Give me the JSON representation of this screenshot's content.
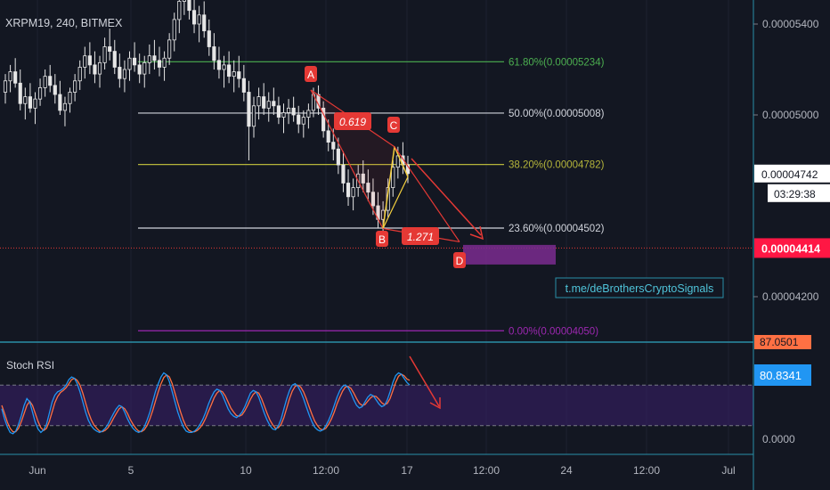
{
  "chart_data": {
    "type": "candlestick",
    "symbol_label": "XRPM19, 240, BITMEX",
    "watermark": "t.me/deBrothersCryptoSignals",
    "price_axis": {
      "ticks": [
        {
          "value": 5.4e-05,
          "label": "0.00005400"
        },
        {
          "value": 5e-05,
          "label": "0.00005000"
        },
        {
          "value": 4.2e-05,
          "label": "0.00004200"
        }
      ],
      "last_price": {
        "value": 4.742e-05,
        "label": "0.00004742",
        "countdown": "03:29:38"
      },
      "hline_price": {
        "value": 4.414e-05,
        "label": "0.00004414"
      },
      "ylim": [
        3.95e-05,
        5.55e-05
      ]
    },
    "time_axis": [
      "Jun",
      "5",
      "10",
      "12:00",
      "17",
      "12:00",
      "24",
      "12:00",
      "Jul"
    ],
    "fib_levels": [
      {
        "ratio": "61.80%",
        "value": 5.234e-05,
        "label": "61.80%(0.00005234)",
        "color": "#4caf50"
      },
      {
        "ratio": "50.00%",
        "value": 5.008e-05,
        "label": "50.00%(0.00005008)",
        "color": "#d1d4dc"
      },
      {
        "ratio": "38.20%",
        "value": 4.782e-05,
        "label": "38.20%(0.00004782)",
        "color": "#b5b53a"
      },
      {
        "ratio": "23.60%",
        "value": 4.502e-05,
        "label": "23.60%(0.00004502)",
        "color": "#d1d4dc"
      },
      {
        "ratio": "0.00%",
        "value": 4.05e-05,
        "label": "0.00%(0.00004050)",
        "color": "#9c27b0"
      }
    ],
    "pattern": {
      "points": [
        {
          "label": "A",
          "value": 5.11e-05
        },
        {
          "label": "B",
          "value": 4.5e-05
        },
        {
          "label": "C",
          "value": 4.86e-05
        },
        {
          "label": "D",
          "value": 4.41e-05
        }
      ],
      "ratios": [
        "0.619",
        "1.271"
      ]
    },
    "target_zone": {
      "from": 4.38e-05,
      "to": 4.42e-05
    },
    "stoch_rsi": {
      "title": "Stoch RSI",
      "ticks": [
        {
          "value": 0,
          "label": "0.0000"
        }
      ],
      "upper_band": 80,
      "lower_band": 20,
      "k_value_label": "80.8341",
      "d_value_label": "87.0501",
      "k": [
        45,
        30,
        18,
        10,
        8,
        12,
        22,
        35,
        50,
        60,
        55,
        40,
        25,
        15,
        10,
        14,
        22,
        38,
        55,
        65,
        70,
        72,
        75,
        80,
        88,
        92,
        90,
        82,
        70,
        55,
        40,
        28,
        20,
        15,
        12,
        10,
        12,
        16,
        22,
        30,
        38,
        45,
        50,
        48,
        40,
        30,
        22,
        16,
        12,
        10,
        12,
        18,
        28,
        40,
        55,
        70,
        82,
        92,
        98,
        95,
        85,
        70,
        55,
        40,
        28,
        18,
        12,
        10,
        10,
        12,
        16,
        22,
        30,
        40,
        52,
        62,
        70,
        74,
        72,
        65,
        55,
        45,
        38,
        34,
        32,
        35,
        40,
        48,
        58,
        68,
        72,
        70,
        62,
        50,
        38,
        28,
        20,
        15,
        14,
        20,
        30,
        45,
        60,
        72,
        80,
        82,
        78,
        70,
        60,
        48,
        36,
        26,
        18,
        14,
        12,
        14,
        20,
        28,
        38,
        50,
        62,
        72,
        78,
        80,
        76,
        68,
        58,
        50,
        46,
        48,
        55,
        62,
        66,
        64,
        58,
        52,
        48,
        50,
        58,
        70,
        84,
        94,
        98,
        96,
        90,
        84,
        80
      ],
      "d": [
        50,
        38,
        25,
        16,
        11,
        11,
        16,
        26,
        38,
        50,
        56,
        50,
        38,
        26,
        17,
        13,
        16,
        26,
        40,
        54,
        63,
        69,
        72,
        76,
        82,
        88,
        90,
        87,
        80,
        68,
        54,
        40,
        29,
        21,
        16,
        12,
        11,
        13,
        17,
        23,
        31,
        38,
        45,
        48,
        45,
        38,
        29,
        22,
        16,
        12,
        11,
        14,
        20,
        30,
        42,
        56,
        70,
        82,
        91,
        95,
        92,
        82,
        68,
        54,
        40,
        28,
        19,
        13,
        11,
        11,
        13,
        17,
        23,
        31,
        41,
        51,
        61,
        68,
        72,
        70,
        64,
        55,
        46,
        40,
        35,
        34,
        36,
        42,
        50,
        59,
        66,
        70,
        68,
        60,
        49,
        38,
        28,
        21,
        16,
        17,
        22,
        32,
        46,
        60,
        71,
        78,
        80,
        77,
        70,
        60,
        48,
        37,
        27,
        20,
        15,
        14,
        16,
        22,
        30,
        40,
        52,
        62,
        71,
        77,
        78,
        75,
        68,
        60,
        53,
        50,
        51,
        56,
        61,
        64,
        63,
        59,
        54,
        51,
        53,
        60,
        72,
        84,
        93,
        96,
        94,
        89,
        87
      ]
    },
    "candles": [
      [
        5.1,
        5.18,
        5.05,
        5.15
      ],
      [
        5.15,
        5.22,
        5.1,
        5.19
      ],
      [
        5.19,
        5.25,
        5.12,
        5.14
      ],
      [
        5.14,
        5.2,
        5.02,
        5.05
      ],
      [
        5.05,
        5.12,
        4.98,
        5.08
      ],
      [
        5.08,
        5.14,
        5.01,
        5.03
      ],
      [
        5.03,
        5.1,
        4.96,
        5.07
      ],
      [
        5.07,
        5.16,
        5.04,
        5.12
      ],
      [
        5.12,
        5.2,
        5.08,
        5.17
      ],
      [
        5.17,
        5.22,
        5.1,
        5.13
      ],
      [
        5.13,
        5.18,
        5.05,
        5.09
      ],
      [
        5.09,
        5.15,
        5.0,
        5.02
      ],
      [
        5.02,
        5.08,
        4.95,
        5.05
      ],
      [
        5.05,
        5.12,
        5.01,
        5.1
      ],
      [
        5.1,
        5.18,
        5.06,
        5.15
      ],
      [
        5.15,
        5.24,
        5.11,
        5.21
      ],
      [
        5.21,
        5.3,
        5.16,
        5.26
      ],
      [
        5.26,
        5.32,
        5.18,
        5.22
      ],
      [
        5.22,
        5.28,
        5.14,
        5.18
      ],
      [
        5.18,
        5.26,
        5.12,
        5.23
      ],
      [
        5.23,
        5.34,
        5.2,
        5.3
      ],
      [
        5.3,
        5.38,
        5.24,
        5.28
      ],
      [
        5.28,
        5.33,
        5.18,
        5.21
      ],
      [
        5.21,
        5.27,
        5.12,
        5.16
      ],
      [
        5.16,
        5.24,
        5.1,
        5.2
      ],
      [
        5.2,
        5.28,
        5.15,
        5.25
      ],
      [
        5.25,
        5.32,
        5.19,
        5.22
      ],
      [
        5.22,
        5.27,
        5.14,
        5.18
      ],
      [
        5.18,
        5.26,
        5.12,
        5.23
      ],
      [
        5.23,
        5.31,
        5.18,
        5.26
      ],
      [
        5.26,
        5.33,
        5.2,
        5.24
      ],
      [
        5.24,
        5.3,
        5.17,
        5.21
      ],
      [
        5.21,
        5.28,
        5.15,
        5.25
      ],
      [
        5.25,
        5.36,
        5.22,
        5.33
      ],
      [
        5.33,
        5.45,
        5.28,
        5.42
      ],
      [
        5.42,
        5.55,
        5.36,
        5.5
      ],
      [
        5.5,
        5.62,
        5.44,
        5.56
      ],
      [
        5.56,
        5.6,
        5.42,
        5.46
      ],
      [
        5.46,
        5.52,
        5.36,
        5.4
      ],
      [
        5.4,
        5.48,
        5.32,
        5.44
      ],
      [
        5.44,
        5.5,
        5.34,
        5.37
      ],
      [
        5.37,
        5.42,
        5.26,
        5.3
      ],
      [
        5.3,
        5.36,
        5.2,
        5.24
      ],
      [
        5.24,
        5.3,
        5.16,
        5.2
      ],
      [
        5.2,
        5.26,
        5.12,
        5.22
      ],
      [
        5.22,
        5.28,
        5.14,
        5.17
      ],
      [
        5.17,
        5.24,
        5.1,
        5.19
      ],
      [
        5.19,
        5.26,
        5.12,
        5.16
      ],
      [
        5.16,
        5.22,
        5.06,
        5.1
      ],
      [
        5.1,
        5.15,
        4.8,
        4.95
      ],
      [
        4.95,
        5.08,
        4.9,
        5.04
      ],
      [
        5.04,
        5.12,
        4.98,
        5.08
      ],
      [
        5.08,
        5.14,
        5.0,
        5.03
      ],
      [
        5.03,
        5.1,
        4.97,
        5.06
      ],
      [
        5.06,
        5.12,
        5.0,
        5.04
      ],
      [
        5.04,
        5.08,
        4.96,
        4.99
      ],
      [
        4.99,
        5.05,
        4.92,
        5.01
      ],
      [
        5.01,
        5.07,
        4.96,
        5.03
      ],
      [
        5.03,
        5.08,
        4.97,
        5.0
      ],
      [
        5.0,
        5.04,
        4.92,
        4.96
      ],
      [
        4.96,
        5.02,
        4.9,
        4.99
      ],
      [
        4.99,
        5.05,
        4.94,
        5.02
      ],
      [
        5.02,
        5.12,
        4.99,
        5.09
      ],
      [
        5.09,
        5.13,
        5.0,
        5.03
      ],
      [
        5.03,
        5.06,
        4.9,
        4.93
      ],
      [
        4.93,
        4.98,
        4.84,
        4.88
      ],
      [
        4.88,
        4.94,
        4.8,
        4.85
      ],
      [
        4.85,
        4.9,
        4.74,
        4.78
      ],
      [
        4.78,
        4.84,
        4.66,
        4.7
      ],
      [
        4.7,
        4.76,
        4.6,
        4.64
      ],
      [
        4.64,
        4.72,
        4.58,
        4.68
      ],
      [
        4.68,
        4.78,
        4.64,
        4.74
      ],
      [
        4.74,
        4.8,
        4.66,
        4.7
      ],
      [
        4.7,
        4.76,
        4.62,
        4.66
      ],
      [
        4.66,
        4.72,
        4.56,
        4.6
      ],
      [
        4.6,
        4.66,
        4.5,
        4.54
      ],
      [
        4.54,
        4.62,
        4.48,
        4.58
      ],
      [
        4.58,
        4.72,
        4.55,
        4.68
      ],
      [
        4.68,
        4.8,
        4.64,
        4.77
      ],
      [
        4.77,
        4.86,
        4.72,
        4.82
      ],
      [
        4.82,
        4.88,
        4.74,
        4.78
      ],
      [
        4.78,
        4.82,
        4.7,
        4.742
      ]
    ]
  }
}
